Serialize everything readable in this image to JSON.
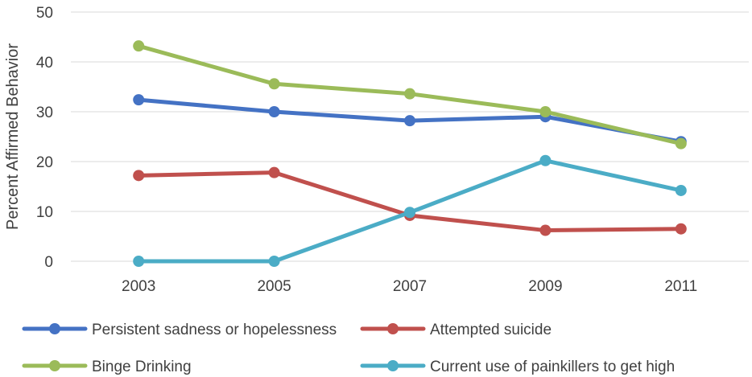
{
  "chart_data": {
    "type": "line",
    "title": "",
    "xlabel": "",
    "ylabel": "Percent Affirmed Behavior",
    "x": [
      "2003",
      "2005",
      "2007",
      "2009",
      "2011"
    ],
    "yticks": [
      "0",
      "10",
      "20",
      "30",
      "40",
      "50"
    ],
    "ylim": [
      0,
      50
    ],
    "grid": true,
    "legend_position": "bottom",
    "series": [
      {
        "name": "Persistent sadness or hopelessness",
        "color": "#4472c4",
        "values": [
          32.4,
          30.0,
          28.2,
          29.0,
          24.0
        ]
      },
      {
        "name": "Attempted suicide",
        "color": "#c0504d",
        "values": [
          17.2,
          17.8,
          9.2,
          6.2,
          6.5
        ]
      },
      {
        "name": "Binge Drinking",
        "color": "#9bbb59",
        "values": [
          43.2,
          35.6,
          33.6,
          30.0,
          23.6
        ]
      },
      {
        "name": "Current use of painkillers to get high",
        "color": "#4bacc6",
        "values": [
          0.0,
          0.0,
          9.8,
          20.2,
          14.2
        ]
      }
    ]
  }
}
